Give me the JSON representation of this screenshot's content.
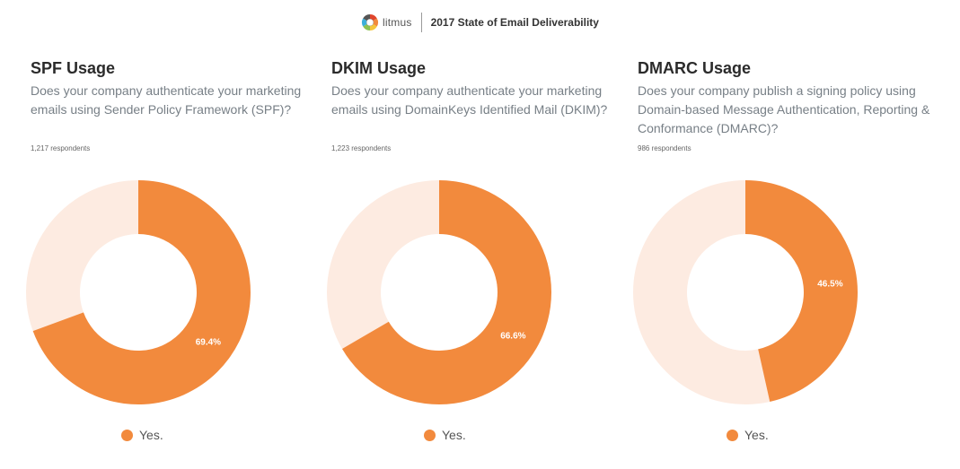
{
  "header": {
    "brand": "litmus",
    "report_title": "2017 State of Email Deliverability"
  },
  "panels": [
    {
      "title": "SPF Usage",
      "question": "Does your company authenticate your marketing emails using Sender Policy Framework (SPF)?",
      "respondents": "1,217 respondents",
      "legend": "Yes."
    },
    {
      "title": "DKIM Usage",
      "question": "Does your company authenticate your marketing emails using DomainKeys Identified Mail (DKIM)?",
      "respondents": "1,223 respondents",
      "legend": "Yes."
    },
    {
      "title": "DMARC Usage",
      "question": "Does your company publish a signing policy using Domain-based Message Authentication, Reporting & Conformance (DMARC)?",
      "respondents": "986 respondents",
      "legend": "Yes."
    }
  ],
  "colors": {
    "yes": "#f28a3d",
    "remainder": "#fdebe1"
  },
  "chart_data": [
    {
      "type": "pie",
      "title": "SPF Usage",
      "categories": [
        "Yes."
      ],
      "values": [
        69.4
      ],
      "value_labels": [
        "69.4%"
      ],
      "total": 100
    },
    {
      "type": "pie",
      "title": "DKIM Usage",
      "categories": [
        "Yes."
      ],
      "values": [
        66.6
      ],
      "value_labels": [
        "66.6%"
      ],
      "total": 100
    },
    {
      "type": "pie",
      "title": "DMARC Usage",
      "categories": [
        "Yes."
      ],
      "values": [
        46.5
      ],
      "value_labels": [
        "46.5%"
      ],
      "total": 100
    }
  ]
}
